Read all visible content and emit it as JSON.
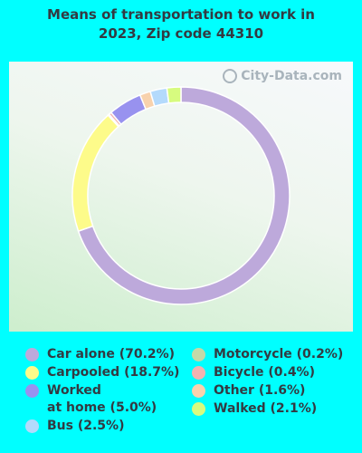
{
  "title": "Means of transportation to work in\n2023, Zip code 44310",
  "watermark": "City-Data.com",
  "icons": {
    "watermark": "magnifier-icon"
  },
  "chart_data": {
    "type": "pie",
    "donut": true,
    "title": "Means of transportation to work in 2023, Zip code 44310",
    "series": [
      {
        "name": "Car alone",
        "label": "Car alone (70.2%)",
        "value": 70.2,
        "color": "#bda9db"
      },
      {
        "name": "Carpooled",
        "label": "Carpooled (18.7%)",
        "value": 18.7,
        "color": "#fdfb8a"
      },
      {
        "name": "Motorcycle",
        "label": "Motorcycle (0.2%)",
        "value": 0.2,
        "color": "#c4d9a8"
      },
      {
        "name": "Bicycle",
        "label": "Bicycle (0.4%)",
        "value": 0.4,
        "color": "#f3b2b0"
      },
      {
        "name": "Worked at home",
        "label": "Worked\nat home (5.0%)",
        "value": 5.0,
        "color": "#9892ef"
      },
      {
        "name": "Other",
        "label": "Other (1.6%)",
        "value": 1.6,
        "color": "#f8d2ad"
      },
      {
        "name": "Bus",
        "label": "Bus (2.5%)",
        "value": 2.5,
        "color": "#b4dafc"
      },
      {
        "name": "Walked",
        "label": "Walked (2.1%)",
        "value": 2.1,
        "color": "#d7fb7f"
      }
    ],
    "legend_left": [
      "Car alone",
      "Carpooled",
      "Worked at home",
      "Bus"
    ],
    "legend_right": [
      "Motorcycle",
      "Bicycle",
      "Other",
      "Walked"
    ]
  }
}
